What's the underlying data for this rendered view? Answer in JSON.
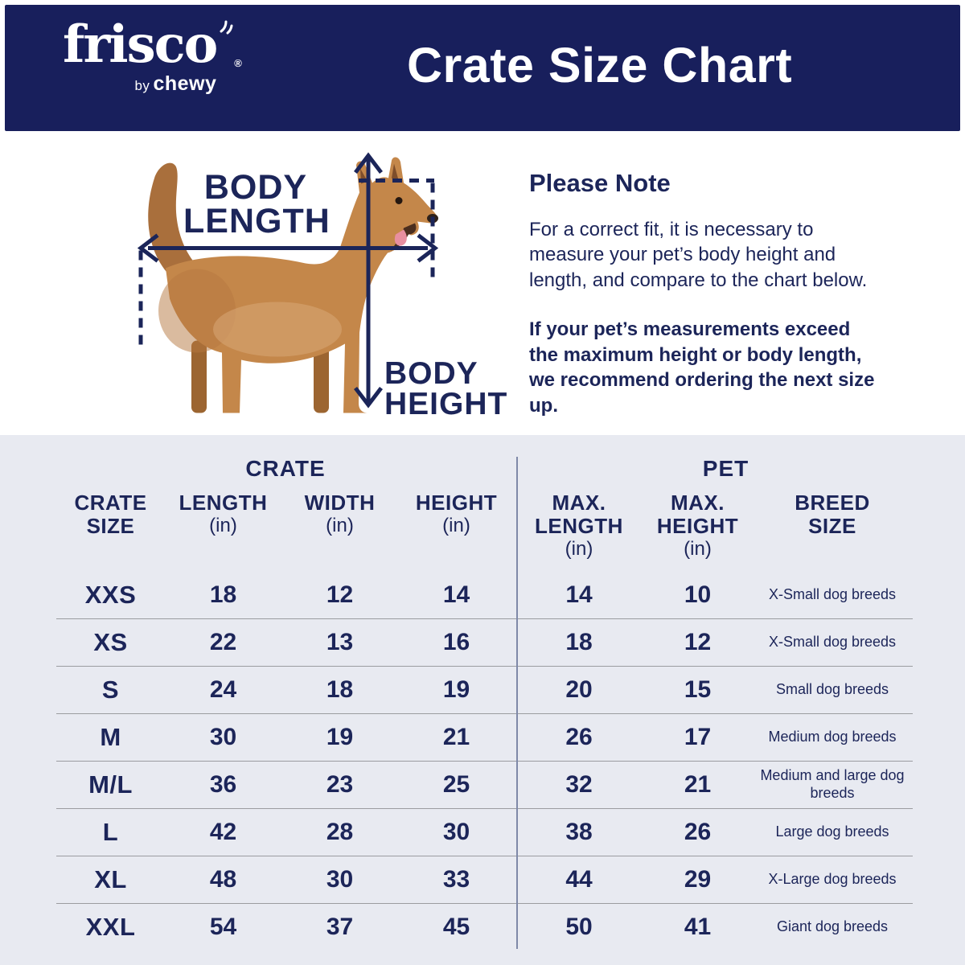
{
  "header": {
    "brand": "frisco",
    "brand_registered": "®",
    "brand_by": "by",
    "brand_chewy": "chewy",
    "title": "Crate Size Chart"
  },
  "diagram": {
    "body_length_line1": "BODY",
    "body_length_line2": "LENGTH",
    "body_height_line1": "BODY",
    "body_height_line2": "HEIGHT"
  },
  "note": {
    "heading": "Please Note",
    "paragraph": "For a correct fit, it is necessary to measure your pet’s body height and length, and compare to the chart below.",
    "bold_paragraph": "If your pet’s measurements exceed the maximum height or body length, we recommend ordering the next size up."
  },
  "table": {
    "group_crate": "CRATE",
    "group_pet": "PET",
    "columns": [
      {
        "label": "CRATE SIZE",
        "unit": ""
      },
      {
        "label": "LENGTH",
        "unit": "(in)"
      },
      {
        "label": "WIDTH",
        "unit": "(in)"
      },
      {
        "label": "HEIGHT",
        "unit": "(in)"
      },
      {
        "label": "MAX. LENGTH",
        "unit": "(in)"
      },
      {
        "label": "MAX. HEIGHT",
        "unit": "(in)"
      },
      {
        "label": "BREED SIZE",
        "unit": ""
      }
    ],
    "rows": [
      {
        "size": "XXS",
        "length": "18",
        "width": "12",
        "height": "14",
        "max_length": "14",
        "max_height": "10",
        "breed": "X-Small dog breeds"
      },
      {
        "size": "XS",
        "length": "22",
        "width": "13",
        "height": "16",
        "max_length": "18",
        "max_height": "12",
        "breed": "X-Small dog breeds"
      },
      {
        "size": "S",
        "length": "24",
        "width": "18",
        "height": "19",
        "max_length": "20",
        "max_height": "15",
        "breed": "Small dog breeds"
      },
      {
        "size": "M",
        "length": "30",
        "width": "19",
        "height": "21",
        "max_length": "26",
        "max_height": "17",
        "breed": "Medium dog breeds"
      },
      {
        "size": "M/L",
        "length": "36",
        "width": "23",
        "height": "25",
        "max_length": "32",
        "max_height": "21",
        "breed": "Medium and large dog breeds"
      },
      {
        "size": "L",
        "length": "42",
        "width": "28",
        "height": "30",
        "max_length": "38",
        "max_height": "26",
        "breed": "Large dog breeds"
      },
      {
        "size": "XL",
        "length": "48",
        "width": "30",
        "height": "33",
        "max_length": "44",
        "max_height": "29",
        "breed": "X-Large dog breeds"
      },
      {
        "size": "XXL",
        "length": "54",
        "width": "37",
        "height": "45",
        "max_length": "50",
        "max_height": "41",
        "breed": "Giant dog breeds"
      }
    ]
  },
  "colors": {
    "navy_banner": "#181F5C",
    "navy_text": "#1C2559",
    "table_background": "#E8EAF1",
    "row_divider": "#9B9CA0",
    "column_divider": "#7F89A8",
    "dog_tan": "#C4874A",
    "white": "#FFFFFF"
  },
  "chart_data": {
    "type": "table",
    "title": "Crate Size Chart",
    "column_groups": [
      {
        "name": "CRATE",
        "columns": [
          "CRATE SIZE",
          "LENGTH (in)",
          "WIDTH (in)",
          "HEIGHT (in)"
        ]
      },
      {
        "name": "PET",
        "columns": [
          "MAX. LENGTH (in)",
          "MAX. HEIGHT (in)",
          "BREED SIZE"
        ]
      }
    ],
    "columns": [
      "CRATE SIZE",
      "LENGTH (in)",
      "WIDTH (in)",
      "HEIGHT (in)",
      "MAX. LENGTH (in)",
      "MAX. HEIGHT (in)",
      "BREED SIZE"
    ],
    "rows": [
      [
        "XXS",
        18,
        12,
        14,
        14,
        10,
        "X-Small dog breeds"
      ],
      [
        "XS",
        22,
        13,
        16,
        18,
        12,
        "X-Small dog breeds"
      ],
      [
        "S",
        24,
        18,
        19,
        20,
        15,
        "Small dog breeds"
      ],
      [
        "M",
        30,
        19,
        21,
        26,
        17,
        "Medium dog breeds"
      ],
      [
        "M/L",
        36,
        23,
        25,
        32,
        21,
        "Medium and large dog breeds"
      ],
      [
        "L",
        42,
        28,
        30,
        38,
        26,
        "Large dog breeds"
      ],
      [
        "XL",
        48,
        30,
        33,
        44,
        29,
        "X-Large dog breeds"
      ],
      [
        "XXL",
        54,
        37,
        45,
        50,
        41,
        "Giant dog breeds"
      ]
    ]
  }
}
